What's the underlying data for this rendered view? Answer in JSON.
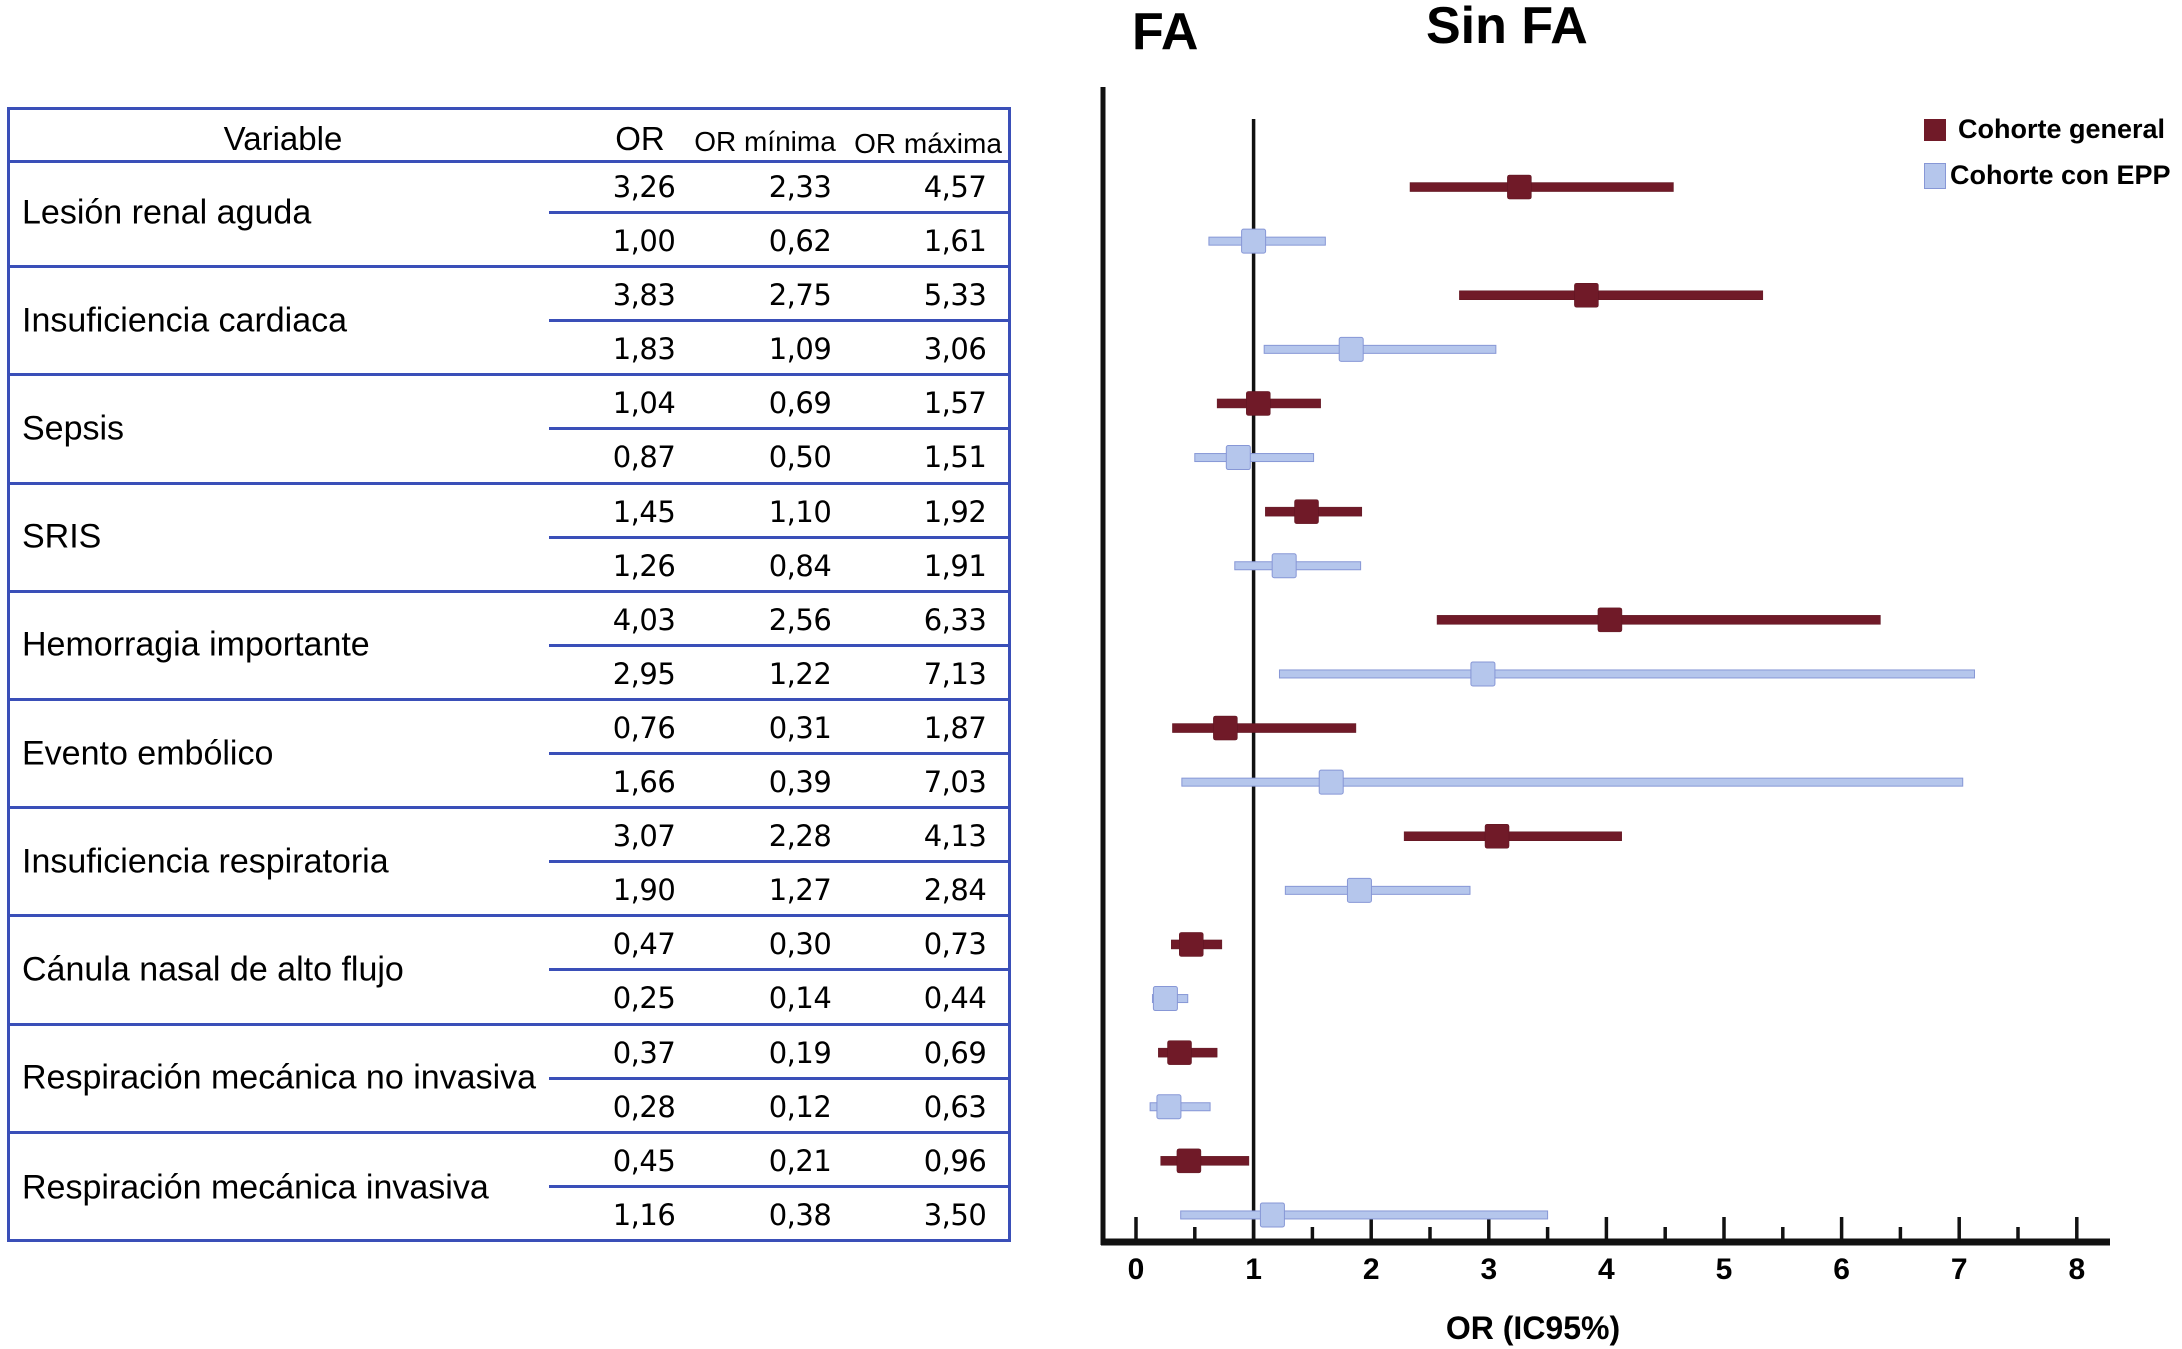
{
  "titles": {
    "left": "FA",
    "right": "Sin FA"
  },
  "table": {
    "headers": {
      "variable": "Variable",
      "or": "OR",
      "or_min": "OR mínima",
      "or_max": "OR máxima"
    },
    "groups": [
      {
        "label": "Lesión renal aguda",
        "rows": [
          {
            "or": "3,26",
            "min": "2,33",
            "max": "4,57"
          },
          {
            "or": "1,00",
            "min": "0,62",
            "max": "1,61"
          }
        ]
      },
      {
        "label": "Insuficiencia cardiaca",
        "rows": [
          {
            "or": "3,83",
            "min": "2,75",
            "max": "5,33"
          },
          {
            "or": "1,83",
            "min": "1,09",
            "max": "3,06"
          }
        ]
      },
      {
        "label": "Sepsis",
        "rows": [
          {
            "or": "1,04",
            "min": "0,69",
            "max": "1,57"
          },
          {
            "or": "0,87",
            "min": "0,50",
            "max": "1,51"
          }
        ]
      },
      {
        "label": "SRIS",
        "rows": [
          {
            "or": "1,45",
            "min": "1,10",
            "max": "1,92"
          },
          {
            "or": "1,26",
            "min": "0,84",
            "max": "1,91"
          }
        ]
      },
      {
        "label": "Hemorragia importante",
        "rows": [
          {
            "or": "4,03",
            "min": "2,56",
            "max": "6,33"
          },
          {
            "or": "2,95",
            "min": "1,22",
            "max": "7,13"
          }
        ]
      },
      {
        "label": "Evento embólico",
        "rows": [
          {
            "or": "0,76",
            "min": "0,31",
            "max": "1,87"
          },
          {
            "or": "1,66",
            "min": "0,39",
            "max": "7,03"
          }
        ]
      },
      {
        "label": "Insuficiencia respiratoria",
        "rows": [
          {
            "or": "3,07",
            "min": "2,28",
            "max": "4,13"
          },
          {
            "or": "1,90",
            "min": "1,27",
            "max": "2,84"
          }
        ]
      },
      {
        "label": "Cánula nasal de alto flujo",
        "rows": [
          {
            "or": "0,47",
            "min": "0,30",
            "max": "0,73"
          },
          {
            "or": "0,25",
            "min": "0,14",
            "max": "0,44"
          }
        ]
      },
      {
        "label": "Respiración mecánica no invasiva",
        "rows": [
          {
            "or": "0,37",
            "min": "0,19",
            "max": "0,69"
          },
          {
            "or": "0,28",
            "min": "0,12",
            "max": "0,63"
          }
        ]
      },
      {
        "label": "Respiración mecánica invasiva",
        "rows": [
          {
            "or": "0,45",
            "min": "0,21",
            "max": "0,96"
          },
          {
            "or": "1,16",
            "min": "0,38",
            "max": "3,50"
          }
        ]
      }
    ]
  },
  "legend": [
    {
      "label": "Cohorte general",
      "color": "#701a28"
    },
    {
      "label": "Cohorte con EPP",
      "color": "#b5c6ec"
    }
  ],
  "chart_data": {
    "type": "forest",
    "xlabel": "OR (IC95%)",
    "xlim": [
      0,
      8.3
    ],
    "xticks": [
      0,
      1,
      2,
      3,
      4,
      5,
      6,
      7,
      8
    ],
    "minor_ticks": [
      0.5,
      1.5,
      2.5,
      3.5,
      4.5,
      5.5,
      6.5,
      7.5
    ],
    "reference_line": 1,
    "region_labels": {
      "left": "FA",
      "right": "Sin FA"
    },
    "legend_position": "top-right",
    "categories": [
      "Lesión renal aguda",
      "Insuficiencia cardiaca",
      "Sepsis",
      "SRIS",
      "Hemorragia importante",
      "Evento embólico",
      "Insuficiencia respiratoria",
      "Cánula nasal de alto flujo",
      "Respiración mecánica no invasiva",
      "Respiración mecánica invasiva"
    ],
    "series": [
      {
        "name": "Cohorte general",
        "color": "#701a28",
        "or": [
          3.26,
          3.83,
          1.04,
          1.45,
          4.03,
          0.76,
          3.07,
          0.47,
          0.37,
          0.45
        ],
        "low": [
          2.33,
          2.75,
          0.69,
          1.1,
          2.56,
          0.31,
          2.28,
          0.3,
          0.19,
          0.21
        ],
        "high": [
          4.57,
          5.33,
          1.57,
          1.92,
          6.33,
          1.87,
          4.13,
          0.73,
          0.69,
          0.96
        ]
      },
      {
        "name": "Cohorte con EPP",
        "color": "#b5c6ec",
        "or": [
          1.0,
          1.83,
          0.87,
          1.26,
          2.95,
          1.66,
          1.9,
          0.25,
          0.28,
          1.16
        ],
        "low": [
          0.62,
          1.09,
          0.5,
          0.84,
          1.22,
          0.39,
          1.27,
          0.14,
          0.12,
          0.38
        ],
        "high": [
          1.61,
          3.06,
          1.51,
          1.91,
          7.13,
          7.03,
          2.84,
          0.44,
          0.63,
          3.5
        ]
      }
    ]
  }
}
